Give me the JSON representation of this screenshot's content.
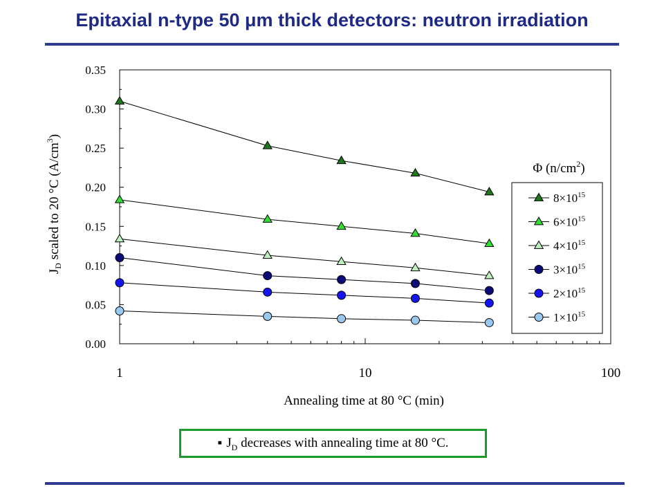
{
  "slide": {
    "title": "Epitaxial n-type 50 μm thick detectors: neutron irradiation"
  },
  "note": {
    "bullet": "▪",
    "j": "J",
    "sub": "D",
    "text": " decreases with annealing time at 80 °C."
  },
  "chart_data": {
    "type": "scatter",
    "x_scale": "log",
    "xlim": [
      1,
      100
    ],
    "ylim": [
      0,
      0.35
    ],
    "grid": false,
    "x_ticks": [
      "1",
      "10",
      "100"
    ],
    "y_ticks": [
      "0.00",
      "0.05",
      "0.10",
      "0.15",
      "0.20",
      "0.25",
      "0.30",
      "0.35"
    ],
    "xlabel": "Annealing time at 80 °C (min)",
    "ylabel": {
      "pre": "J",
      "sub": "D",
      "mid": " scaled to 20 °C (A/cm",
      "sup": "3",
      "post": ")"
    },
    "legend_title": {
      "text": "Φ (n/cm",
      "sup": "2",
      "post": ")"
    },
    "legend_position": "right",
    "series": [
      {
        "name": "8×10",
        "exp": "15",
        "marker": "triangle",
        "color": "#1c7a1c",
        "x": [
          1,
          4,
          8,
          16,
          32
        ],
        "values": [
          0.31,
          0.253,
          0.234,
          0.218,
          0.194
        ]
      },
      {
        "name": "6×10",
        "exp": "15",
        "marker": "triangle",
        "color": "#33dd33",
        "x": [
          1,
          4,
          8,
          16,
          32
        ],
        "values": [
          0.184,
          0.159,
          0.15,
          0.141,
          0.128
        ]
      },
      {
        "name": "4×10",
        "exp": "15",
        "marker": "triangle",
        "color": "#bdf0bd",
        "x": [
          1,
          4,
          8,
          16,
          32
        ],
        "values": [
          0.134,
          0.113,
          0.105,
          0.097,
          0.087
        ]
      },
      {
        "name": "3×10",
        "exp": "15",
        "marker": "circle",
        "color": "#0a0a78",
        "x": [
          1,
          4,
          8,
          16,
          32
        ],
        "values": [
          0.11,
          0.087,
          0.082,
          0.077,
          0.068
        ]
      },
      {
        "name": "2×10",
        "exp": "15",
        "marker": "circle",
        "color": "#1414ee",
        "x": [
          1,
          4,
          8,
          16,
          32
        ],
        "values": [
          0.078,
          0.066,
          0.062,
          0.058,
          0.052
        ]
      },
      {
        "name": "1×10",
        "exp": "15",
        "marker": "circle",
        "color": "#99c8f0",
        "x": [
          1,
          4,
          8,
          16,
          32
        ],
        "values": [
          0.042,
          0.035,
          0.032,
          0.03,
          0.027
        ]
      }
    ]
  }
}
